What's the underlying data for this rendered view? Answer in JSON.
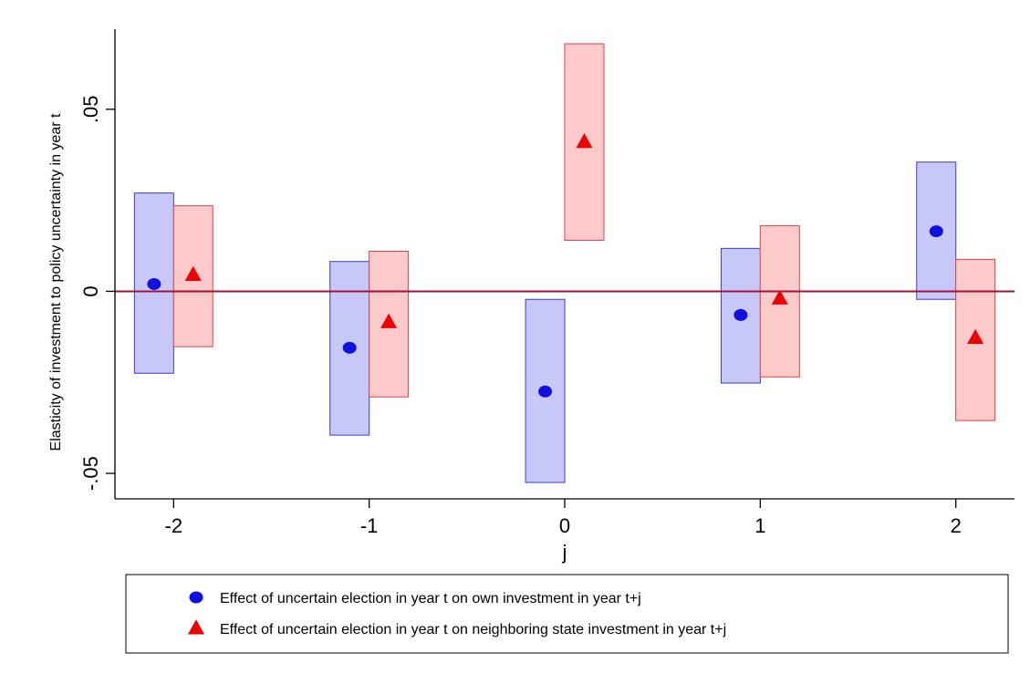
{
  "chart_data": {
    "type": "scatter",
    "xlabel": "j",
    "ylabel": "Elasticity of investment to policy uncertainty in year t",
    "x_ticks": [
      "-2",
      "-1",
      "0",
      "1",
      "2"
    ],
    "y_ticks": [
      {
        "value": -0.05,
        "label": "-.05"
      },
      {
        "value": 0,
        "label": "0"
      },
      {
        "value": 0.05,
        "label": ".05"
      }
    ],
    "xlim": [
      -2.3,
      2.3
    ],
    "ylim": [
      -0.057,
      0.072
    ],
    "reference_line": {
      "y": 0,
      "color": "#a01038"
    },
    "legend_position": "bottom",
    "series": [
      {
        "name": "Effect of uncertain election in year t on own investment in year t+j",
        "marker": "circle",
        "color": "#1010e0",
        "band_fill": "#c8c8f8",
        "band_stroke": "#3a3ad0",
        "x_offset": -0.1,
        "x": [
          -2,
          -1,
          0,
          1,
          2
        ],
        "y": [
          0.002,
          -0.0155,
          -0.0275,
          -0.0065,
          0.0165
        ],
        "ci_low": [
          -0.0225,
          -0.0395,
          -0.0525,
          -0.0252,
          -0.0022
        ],
        "ci_high": [
          0.027,
          0.0082,
          -0.0022,
          0.0118,
          0.0355
        ]
      },
      {
        "name": "Effect of uncertain election in year t on neighboring state investment in year t+j",
        "marker": "triangle",
        "color": "#ee0000",
        "band_fill": "#fccaca",
        "band_stroke": "#e04040",
        "x_offset": 0.1,
        "x": [
          -2,
          -1,
          0,
          1,
          2
        ],
        "y": [
          0.0045,
          -0.0085,
          0.041,
          -0.002,
          -0.0128
        ],
        "ci_low": [
          -0.0152,
          -0.029,
          0.014,
          -0.0235,
          -0.0355
        ],
        "ci_high": [
          0.0235,
          0.011,
          0.068,
          0.018,
          0.0088
        ]
      }
    ]
  }
}
